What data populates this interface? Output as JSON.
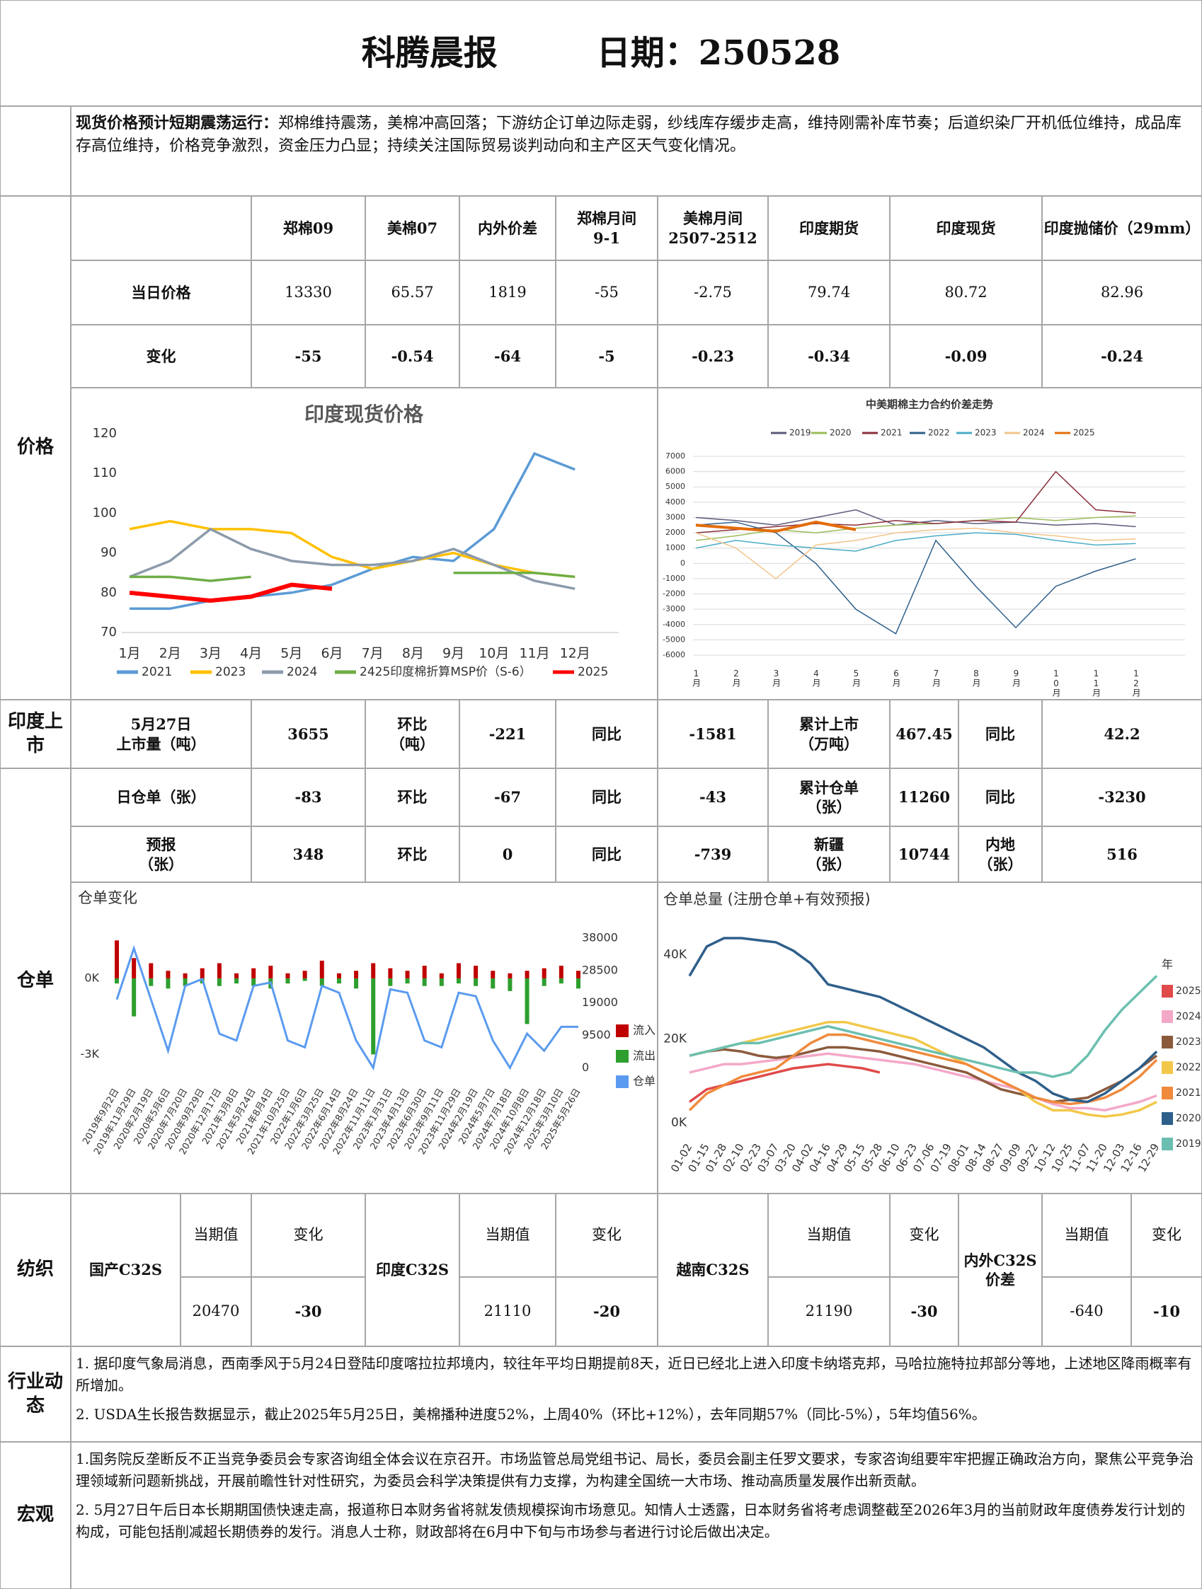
{
  "header": {
    "title": "科腾晨报",
    "date": "日期：250528"
  },
  "summary": {
    "lead": "现货价格预计短期震荡运行：",
    "text": "郑棉维持震荡，美棉冲高回落；下游纺企订单边际走弱，纱线库存缓步走高，维持刚需补库节奏；后道织染厂开机低位维持，成品库存高位维持，价格竞争激烈，资金压力凸显；持续关注国际贸易谈判动向和主产区天气变化情况。"
  },
  "sections": {
    "price": "价格",
    "india": "印度上市",
    "warehouse": "仓单",
    "yarn": "纺织",
    "industry": "行业动态",
    "macro": "宏观"
  },
  "price_table": {
    "columns": [
      "郑棉09",
      "美棉07",
      "内外价差",
      "郑棉月间\n9-1",
      "美棉月间\n2507-2512",
      "印度期货",
      "印度现货",
      "印度抛储价（29mm）"
    ],
    "rows": [
      {
        "label": "当日价格",
        "values": [
          "13330",
          "65.57",
          "1819",
          "-55",
          "-2.75",
          "79.74",
          "80.72",
          "82.96"
        ]
      },
      {
        "label": "变化",
        "values": [
          "-55",
          "-0.54",
          "-64",
          "-5",
          "-0.23",
          "-0.34",
          "-0.09",
          "-0.24"
        ]
      }
    ]
  },
  "india_listing": [
    "5月27日\n上市量（吨）",
    "3655",
    "环比\n（吨）",
    "-221",
    "同比",
    "-1581",
    "累计上市\n（万吨）",
    "467.45",
    "同比",
    "42.2"
  ],
  "warehouse_rows": [
    [
      "日仓单（张）",
      "-83",
      "环比",
      "-67",
      "同比",
      "-43",
      "累计仓单\n（张）",
      "11260",
      "同比",
      "-3230"
    ],
    [
      "预报\n（张）",
      "348",
      "环比",
      "0",
      "同比",
      "-739",
      "新疆\n（张）",
      "10744",
      "内地\n（张）",
      "516"
    ]
  ],
  "charts": {
    "india_spot": {
      "type": "line",
      "title": "印度现货价格",
      "categories": [
        "1月",
        "2月",
        "3月",
        "4月",
        "5月",
        "6月",
        "7月",
        "8月",
        "9月",
        "10月",
        "11月",
        "12月"
      ],
      "ylim": [
        70,
        120
      ],
      "yticks": [
        70,
        80,
        90,
        100,
        110,
        120
      ],
      "series": [
        {
          "name": "2021",
          "color": "#5b9bd5",
          "values": [
            76,
            76,
            78,
            79,
            80,
            82,
            86,
            89,
            88,
            96,
            115,
            111
          ]
        },
        {
          "name": "2023",
          "color": "#ffc000",
          "values": [
            96,
            98,
            96,
            96,
            95,
            89,
            86,
            88,
            90,
            87,
            85,
            84
          ]
        },
        {
          "name": "2024",
          "color": "#8c9bab",
          "values": [
            84,
            88,
            96,
            91,
            88,
            87,
            87,
            88,
            91,
            87,
            83,
            81
          ]
        },
        {
          "name": "2425印度棉折算MSP价（S-6）",
          "color": "#70ad47",
          "values": [
            84,
            84,
            83,
            84,
            null,
            null,
            null,
            null,
            85,
            85,
            85,
            84
          ]
        },
        {
          "name": "2025",
          "color": "#ff0000",
          "values": [
            80,
            79,
            78,
            79,
            82,
            81,
            null,
            null,
            null,
            null,
            null,
            null
          ]
        }
      ]
    },
    "spread": {
      "type": "line",
      "title": "中美期棉主力合约价差走势",
      "grid": true,
      "categories": [
        "1月",
        "2月",
        "3月",
        "4月",
        "5月",
        "6月",
        "7月",
        "8月",
        "9月",
        "10月",
        "11月",
        "12月"
      ],
      "ylim": [
        -6000,
        7000
      ],
      "yticks": [
        -6000,
        -5000,
        -4000,
        -3000,
        -2000,
        -1000,
        0,
        1000,
        2000,
        3000,
        4000,
        5000,
        6000,
        7000
      ],
      "series": [
        {
          "name": "2019",
          "color": "#5a5a7a",
          "values": [
            3000,
            2800,
            2500,
            3000,
            3500,
            2500,
            2800,
            2600,
            2700,
            2500,
            2600,
            2400
          ]
        },
        {
          "name": "2020",
          "color": "#9bbb59",
          "values": [
            1500,
            1800,
            2200,
            2000,
            2300,
            2500,
            2600,
            2800,
            3000,
            2800,
            3000,
            3100
          ]
        },
        {
          "name": "2021",
          "color": "#8b2f3a",
          "values": [
            2000,
            2200,
            2400,
            2600,
            2500,
            2800,
            2600,
            2800,
            2700,
            6000,
            3500,
            3300
          ]
        },
        {
          "name": "2022",
          "color": "#2e5f8a",
          "values": [
            2500,
            2700,
            2000,
            0,
            -3000,
            -4600,
            1500,
            -1500,
            -4200,
            -1500,
            -500,
            300
          ]
        },
        {
          "name": "2023",
          "color": "#4bacc6",
          "values": [
            1000,
            1500,
            1200,
            1000,
            800,
            1500,
            1800,
            2000,
            1900,
            1500,
            1200,
            1300
          ]
        },
        {
          "name": "2024",
          "color": "#f2c48a",
          "values": [
            2000,
            1000,
            -1000,
            1200,
            1500,
            2000,
            2200,
            2300,
            2000,
            1800,
            1500,
            1600
          ]
        },
        {
          "name": "2025",
          "color": "#e36c0a",
          "values": [
            2500,
            2300,
            2100,
            2700,
            2200,
            null,
            null,
            null,
            null,
            null,
            null,
            null
          ]
        }
      ]
    },
    "warehouse_change": {
      "type": "bar_line",
      "title": "仓单变化",
      "categories": [
        "2019年9月2日",
        "2019年11月29日",
        "2020年2月19日",
        "2020年5月6日",
        "2020年7月20日",
        "2020年9月29日",
        "2020年12月17日",
        "2021年3月8日",
        "2021年5月24日",
        "2021年8月4日",
        "2021年10月25日",
        "2022年1月6日",
        "2022年3月25日",
        "2022年6月14日",
        "2022年8月24日",
        "2022年11月11日",
        "2023年1月31日",
        "2023年4月13日",
        "2023年6月30日",
        "2023年9月11日",
        "2023年11月29日",
        "2024年2月19日",
        "2024年5月7日",
        "2024年7月18日",
        "2024年10月8日",
        "2024年12月18日",
        "2025年3月10日",
        "2025年5月26日"
      ],
      "ylim": [
        -3800,
        2400
      ],
      "yticks": [
        {
          "value": 0,
          "label": "0K"
        },
        {
          "value": -3000,
          "label": "-3K"
        }
      ],
      "y2lim": [
        -2000,
        44000
      ],
      "y2ticks": [
        0,
        9500,
        19000,
        28500,
        38000
      ],
      "series": [
        {
          "name": "流入",
          "color": "#c00000",
          "values": [
            1500,
            800,
            600,
            300,
            200,
            400,
            600,
            200,
            400,
            500,
            200,
            300,
            700,
            200,
            300,
            600,
            400,
            300,
            500,
            200,
            600,
            500,
            300,
            200,
            300,
            400,
            500,
            300
          ]
        },
        {
          "name": "流出",
          "color": "#2e9e2e",
          "values": [
            -200,
            -1500,
            -300,
            -400,
            -300,
            -200,
            -300,
            -200,
            -300,
            -400,
            -200,
            -100,
            -300,
            -200,
            -400,
            -3000,
            -300,
            -200,
            -300,
            -300,
            -200,
            -300,
            -400,
            -500,
            -1800,
            -300,
            -200,
            -400
          ]
        },
        {
          "name": "仓单",
          "color": "#5b9bef",
          "axis": "y2",
          "values": [
            20000,
            35000,
            20000,
            5000,
            24000,
            26000,
            10000,
            8000,
            24000,
            25000,
            8000,
            6000,
            24000,
            22000,
            8000,
            0,
            23000,
            22000,
            8000,
            6000,
            22000,
            21000,
            8000,
            0,
            10000,
            5000,
            12000,
            12000
          ]
        }
      ]
    },
    "warehouse_total": {
      "type": "line",
      "title": "仓单总量 (注册仓单+有效预报)",
      "legend_title": "年",
      "categories": [
        "01-02",
        "01-15",
        "01-28",
        "02-10",
        "02-23",
        "03-07",
        "03-20",
        "04-02",
        "04-16",
        "04-29",
        "05-15",
        "05-28",
        "06-10",
        "06-23",
        "07-06",
        "07-19",
        "08-01",
        "08-14",
        "08-27",
        "09-09",
        "09-22",
        "10-12",
        "10-25",
        "11-07",
        "11-20",
        "12-03",
        "12-16",
        "12-29"
      ],
      "ylim": [
        -3000,
        44000
      ],
      "yticks": [
        {
          "value": 0,
          "label": "0K"
        },
        {
          "value": 20000,
          "label": "20K"
        },
        {
          "value": 40000,
          "label": "40K"
        }
      ],
      "series": [
        {
          "name": "2025",
          "color": "#e04a4a",
          "values": [
            5000,
            8000,
            9000,
            10000,
            11000,
            12000,
            13000,
            13500,
            14000,
            13500,
            13000,
            12000,
            null,
            null,
            null,
            null,
            null,
            null,
            null,
            null,
            null,
            null,
            null,
            null,
            null,
            null,
            null,
            null
          ]
        },
        {
          "name": "2024",
          "color": "#f4a8c8",
          "values": [
            12000,
            13000,
            14000,
            14000,
            14500,
            15000,
            15500,
            16000,
            16500,
            16000,
            15500,
            15000,
            14500,
            14000,
            13000,
            12000,
            11000,
            10000,
            9000,
            8000,
            6000,
            4500,
            3500,
            3500,
            3000,
            4000,
            5000,
            6500
          ]
        },
        {
          "name": "2023",
          "color": "#8b5a3c",
          "values": [
            16000,
            17000,
            17500,
            17000,
            16000,
            15500,
            16000,
            17000,
            18000,
            18000,
            17500,
            17000,
            16000,
            15000,
            14000,
            13000,
            12000,
            10000,
            8000,
            7000,
            6000,
            5000,
            5500,
            6000,
            8000,
            10000,
            13000,
            16000
          ]
        },
        {
          "name": "2022",
          "color": "#f2c84a",
          "values": [
            16000,
            17000,
            18000,
            19000,
            20000,
            21000,
            22000,
            23000,
            24000,
            24000,
            23000,
            22000,
            21000,
            20000,
            18000,
            16000,
            14000,
            12000,
            10000,
            8000,
            5000,
            3000,
            3000,
            2000,
            1500,
            2000,
            3000,
            5000
          ]
        },
        {
          "name": "2021",
          "color": "#f08a3c",
          "values": [
            3000,
            7000,
            9000,
            11000,
            12000,
            13000,
            16000,
            19000,
            21000,
            21000,
            20000,
            19000,
            18000,
            17000,
            16000,
            15000,
            14000,
            12000,
            10000,
            8000,
            6000,
            5000,
            4500,
            5000,
            6000,
            8000,
            11000,
            15000
          ]
        },
        {
          "name": "2020",
          "color": "#2e5f8a",
          "values": [
            35000,
            42000,
            44000,
            44000,
            43500,
            43000,
            41000,
            38000,
            33000,
            32000,
            31000,
            30000,
            28000,
            26000,
            24000,
            22000,
            20000,
            18000,
            15000,
            12000,
            10000,
            7000,
            5500,
            5000,
            7000,
            10000,
            13000,
            17000
          ]
        },
        {
          "name": "2019",
          "color": "#6bbfb0",
          "values": [
            16000,
            17000,
            18000,
            19000,
            19000,
            20000,
            21000,
            22000,
            23000,
            22000,
            21000,
            20000,
            19000,
            18000,
            17000,
            16000,
            15000,
            14000,
            13000,
            12000,
            12000,
            11000,
            12000,
            16000,
            22000,
            27000,
            31000,
            35000
          ]
        }
      ]
    }
  },
  "yarn": [
    {
      "name": "国产C32S",
      "head_current": "当期值",
      "head_change": "变化",
      "current": "20470",
      "change": "-30"
    },
    {
      "name": "印度C32S",
      "head_current": "当期值",
      "head_change": "变化",
      "current": "21110",
      "change": "-20"
    },
    {
      "name": "越南C32S",
      "head_current": "当期值",
      "head_change": "变化",
      "current": "21190",
      "change": "-30"
    },
    {
      "name": "内外C32S\n价差",
      "head_current": "当期值",
      "head_change": "变化",
      "current": "-640",
      "change": "-10"
    }
  ],
  "industry": [
    "1. 据印度气象局消息，西南季风于5月24日登陆印度喀拉拉邦境内，较往年平均日期提前8天，近日已经北上进入印度卡纳塔克邦，马哈拉施特拉邦部分等地，上述地区降雨概率有所增加。",
    "2. USDA生长报告数据显示，截止2025年5月25日，美棉播种进度52%，上周40%（环比+12%），去年同期57%（同比-5%），5年均值56%。"
  ],
  "macro": [
    "1.国务院反垄断反不正当竞争委员会专家咨询组全体会议在京召开。市场监管总局党组书记、局长，委员会副主任罗文要求，专家咨询组要牢牢把握正确政治方向，聚焦公平竞争治理领域新问题新挑战，开展前瞻性针对性研究，为委员会科学决策提供有力支撑，为构建全国统一大市场、推动高质量发展作出新贡献。",
    "2. 5月27日午后日本长期期国债快速走高，报道称日本财务省将就发债规模探询市场意见。知情人士透露，日本财务省将考虑调整截至2026年3月的当前财政年度债券发行计划的构成，可能包括削减超长期债券的发行。消息人士称，财政部将在6月中下旬与市场参与者进行讨论后做出决定。"
  ]
}
